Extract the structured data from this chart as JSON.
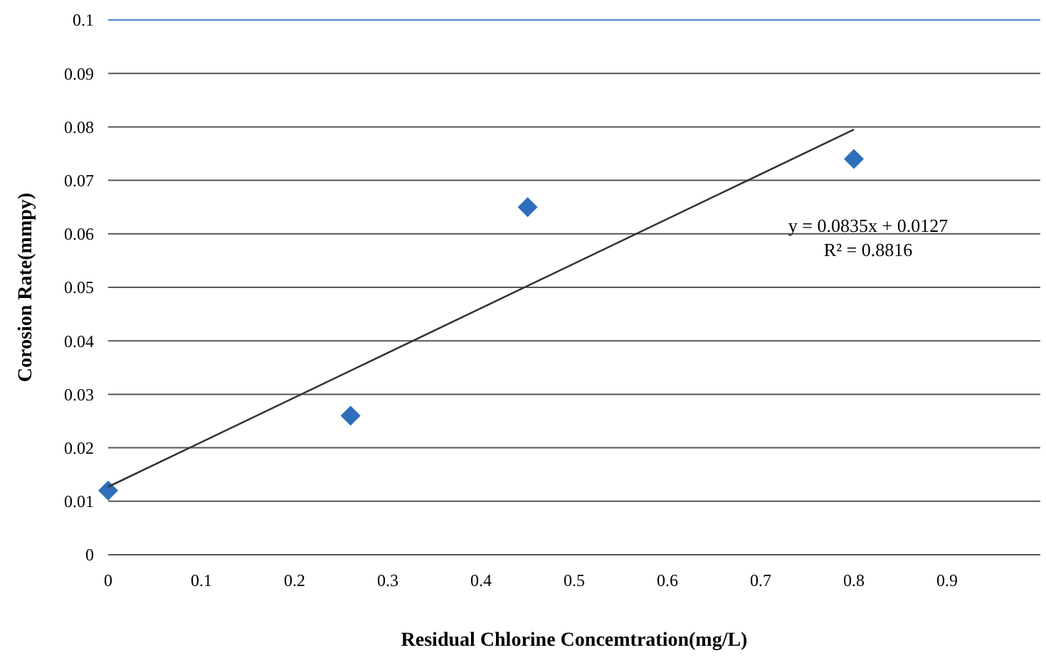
{
  "chart_data": {
    "type": "scatter",
    "xlabel": "Residual Chlorine Concemtration(mg/L)",
    "ylabel": "Corosion Rate(mmpy)",
    "xlim": [
      0,
      1
    ],
    "xticks": [
      0,
      0.1,
      0.2,
      0.3,
      0.4,
      0.5,
      0.6,
      0.7,
      0.8,
      0.9
    ],
    "ylim": [
      0,
      0.1
    ],
    "yticks": [
      0,
      0.01,
      0.02,
      0.03,
      0.04,
      0.05,
      0.06,
      0.07,
      0.08,
      0.09,
      0.1
    ],
    "grid": "y",
    "series": [
      {
        "color": "#2e6fba",
        "marker": "diamond",
        "x": [
          0,
          0.26,
          0.45,
          0.8
        ],
        "values": [
          0.012,
          0.026,
          0.065,
          0.074
        ]
      },
      {
        "type": "line",
        "color": "#333333",
        "marker": "none",
        "line_style": "solid",
        "x": [
          0,
          0.8
        ],
        "values": [
          0.0127,
          0.0795
        ]
      }
    ],
    "annotations": [
      "y = 0.0835x + 0.0127",
      "R² = 0.8816"
    ]
  }
}
